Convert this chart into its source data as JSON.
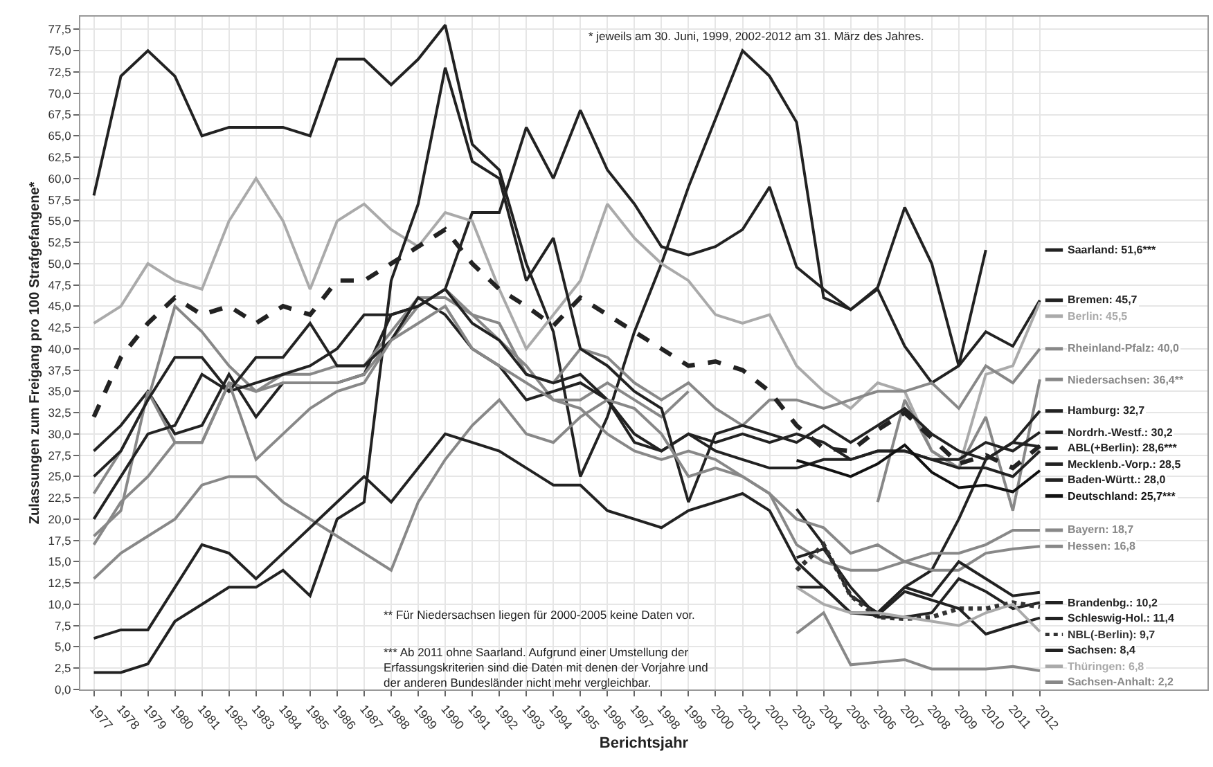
{
  "chart_data": {
    "type": "line",
    "xlabel": "Berichtsjahr",
    "ylabel": "Zulassungen zum Freigang pro 100 Strafgefangene*",
    "categories": [
      "1977",
      "1978",
      "1979",
      "1980",
      "1981",
      "1982",
      "1983",
      "1984",
      "1985",
      "1986",
      "1987",
      "1988",
      "1989",
      "1990",
      "1991",
      "1992",
      "1993",
      "1994",
      "1995",
      "1996",
      "1997",
      "1998",
      "1999",
      "2000",
      "2001",
      "2002",
      "2003",
      "2004",
      "2005",
      "2006",
      "2007",
      "2008",
      "2009",
      "2010",
      "2011",
      "2012"
    ],
    "ylim": [
      0,
      79
    ],
    "yticks": [
      {
        "value": 0,
        "label": "0,0"
      },
      {
        "value": 2.5,
        "label": "2,5"
      },
      {
        "value": 5,
        "label": "5,0"
      },
      {
        "value": 7.5,
        "label": "7,5"
      },
      {
        "value": 10,
        "label": "10,0"
      },
      {
        "value": 12.5,
        "label": "12,5"
      },
      {
        "value": 15,
        "label": "15,0"
      },
      {
        "value": 17.5,
        "label": "17,5"
      },
      {
        "value": 20,
        "label": "20,0"
      },
      {
        "value": 22.5,
        "label": "22,5"
      },
      {
        "value": 25,
        "label": "25,0"
      },
      {
        "value": 27.5,
        "label": "27,5"
      },
      {
        "value": 30,
        "label": "30,0"
      },
      {
        "value": 32.5,
        "label": "32,5"
      },
      {
        "value": 35,
        "label": "35,0"
      },
      {
        "value": 37.5,
        "label": "37,5"
      },
      {
        "value": 40,
        "label": "40,0"
      },
      {
        "value": 42.5,
        "label": "42,5"
      },
      {
        "value": 45,
        "label": "45,0"
      },
      {
        "value": 47.5,
        "label": "47,5"
      },
      {
        "value": 50,
        "label": "50,0"
      },
      {
        "value": 52.5,
        "label": "52,5"
      },
      {
        "value": 55,
        "label": "55,0"
      },
      {
        "value": 57.5,
        "label": "57,5"
      },
      {
        "value": 60,
        "label": "60,0"
      },
      {
        "value": 62.5,
        "label": "62,5"
      },
      {
        "value": 65,
        "label": "65,0"
      },
      {
        "value": 67.5,
        "label": "67,5"
      },
      {
        "value": 70,
        "label": "70,0"
      },
      {
        "value": 72.5,
        "label": "72,5"
      },
      {
        "value": 75,
        "label": "75,0"
      },
      {
        "value": 77.5,
        "label": "77,5"
      }
    ],
    "grid": true,
    "legend": "right",
    "marker": "none",
    "line_style": "solid",
    "series": [
      {
        "name": "Saarland: 51,6***",
        "color": "#222222",
        "values": [
          58,
          72,
          75,
          72,
          65,
          66,
          66,
          66,
          65,
          74,
          74,
          71,
          74,
          78,
          64,
          61,
          50,
          42,
          25,
          32,
          42,
          50,
          59,
          67,
          75,
          72,
          66.6,
          46,
          44.6,
          47.2,
          56.6,
          50,
          38,
          51.6,
          null,
          null
        ]
      },
      {
        "name": "Bremen: 45,7",
        "color": "#222222",
        "values": [
          28,
          31,
          35,
          30,
          31,
          37,
          32,
          36,
          36,
          36,
          37,
          44,
          45,
          47,
          56,
          56,
          66,
          60,
          68,
          61,
          57,
          52,
          51,
          52,
          54,
          59,
          49.6,
          47,
          44.6,
          47,
          40.3,
          36,
          38,
          42,
          40.3,
          45.7
        ]
      },
      {
        "name": "Berlin: 45,5",
        "color": "#aaaaaa",
        "values": [
          43,
          45,
          50,
          48,
          47,
          55,
          60,
          55,
          47,
          55,
          57,
          54,
          52,
          56,
          55,
          47,
          40,
          44,
          48,
          57,
          53,
          50,
          48,
          44,
          43,
          44,
          38,
          35,
          33,
          36,
          35,
          28,
          26,
          37,
          38,
          45.5
        ]
      },
      {
        "name": "Rheinland-Pfalz: 40,0",
        "color": "#888888",
        "values": [
          18,
          21,
          35,
          29,
          29,
          36,
          35,
          36,
          36,
          36,
          37,
          41,
          45,
          47,
          44,
          43,
          37,
          36,
          40,
          39,
          36,
          34,
          36,
          33,
          31,
          34,
          34,
          33,
          34,
          35,
          35,
          36,
          33,
          38,
          36,
          40
        ]
      },
      {
        "name": "Niedersachsen: 36,4**",
        "color": "#888888",
        "values": [
          23,
          28,
          34,
          45,
          42,
          38,
          35,
          37,
          37,
          38,
          38,
          42,
          46,
          46,
          44,
          41,
          38,
          34,
          34,
          36,
          34,
          32,
          35,
          null,
          null,
          null,
          null,
          null,
          null,
          22,
          34,
          28,
          26,
          32,
          21,
          36.4
        ]
      },
      {
        "name": "Hamburg: 32,7",
        "color": "#222222",
        "values": [
          2,
          2,
          3,
          8,
          10,
          12,
          12,
          14,
          11,
          20,
          22,
          48,
          57,
          73,
          62,
          60,
          48,
          53,
          40,
          38,
          35,
          33,
          22,
          30,
          31,
          30,
          29,
          31,
          29,
          31,
          33,
          30,
          28,
          27,
          29,
          32.7
        ]
      },
      {
        "name": "Nordrh.-Westf.: 30,2",
        "color": "#222222",
        "values": [
          25,
          28,
          34,
          39,
          39,
          35,
          39,
          39,
          43,
          38,
          38,
          41,
          46,
          44,
          40,
          38,
          34,
          35,
          36,
          34,
          29,
          28,
          30,
          29,
          30,
          29,
          30,
          29,
          27,
          28,
          28,
          27,
          27,
          29,
          28,
          30.2
        ]
      },
      {
        "name": "ABL(+Berlin): 28,6***",
        "color": "#222222",
        "line_style": "dashed",
        "values": [
          32,
          39,
          43,
          46,
          44,
          45,
          43,
          45,
          44,
          48,
          48,
          50,
          52,
          54,
          50,
          47,
          45,
          42.7,
          46,
          44,
          42,
          40,
          38,
          38.5,
          37.5,
          35,
          31,
          28.3,
          28,
          30.5,
          32.5,
          29.5,
          26.5,
          27.5,
          26,
          28.6
        ]
      },
      {
        "name": "Mecklenb.-Vorp.: 28,5",
        "color": "#222222",
        "values": [
          null,
          null,
          null,
          null,
          null,
          null,
          null,
          null,
          null,
          null,
          null,
          null,
          null,
          null,
          null,
          null,
          null,
          null,
          null,
          null,
          null,
          null,
          null,
          null,
          null,
          null,
          21.2,
          17,
          11,
          9,
          12,
          14,
          20,
          27,
          29,
          28.5
        ]
      },
      {
        "name": "Baden-Württ.: 28,0",
        "color": "#222222",
        "values": [
          20,
          25,
          30,
          31,
          37,
          35,
          36,
          37,
          38,
          40,
          44,
          44,
          45,
          47,
          43,
          41,
          37,
          36,
          37,
          34,
          30,
          28,
          30,
          28,
          27,
          26,
          26,
          27,
          27,
          28,
          28,
          27,
          26,
          26,
          25,
          28
        ]
      },
      {
        "name": "Deutschland: 25,7***",
        "color": "#111111",
        "values": [
          null,
          null,
          null,
          null,
          null,
          null,
          null,
          null,
          null,
          null,
          null,
          null,
          null,
          null,
          null,
          null,
          null,
          null,
          null,
          null,
          null,
          null,
          null,
          null,
          null,
          null,
          26.9,
          26,
          25,
          26.5,
          28.7,
          25.5,
          23.7,
          24,
          23.2,
          25.7
        ]
      },
      {
        "name": "Bayern: 18,7",
        "color": "#888888",
        "values": [
          13,
          16,
          18,
          20,
          24,
          25,
          25,
          22,
          20,
          18,
          16,
          14,
          22,
          27,
          31,
          34,
          30,
          29,
          32,
          34,
          33,
          30,
          25,
          26,
          25,
          23,
          17,
          15,
          14,
          14,
          15,
          16,
          16,
          17,
          18.7,
          18.7
        ]
      },
      {
        "name": "Hessen: 16,8",
        "color": "#888888",
        "values": [
          17,
          22,
          25,
          29,
          29,
          36,
          27,
          30,
          33,
          35,
          36,
          41,
          43,
          45,
          40,
          38,
          36,
          34,
          33,
          30,
          28,
          27,
          28,
          27,
          25,
          23,
          20,
          19,
          16,
          17,
          15,
          14,
          14,
          16,
          16.5,
          16.8
        ]
      },
      {
        "name": "Brandenbg.: 10,2",
        "color": "#222222",
        "values": [
          null,
          null,
          null,
          null,
          null,
          null,
          null,
          null,
          null,
          null,
          null,
          null,
          null,
          null,
          null,
          null,
          null,
          null,
          null,
          null,
          null,
          null,
          null,
          null,
          null,
          null,
          15.5,
          16.5,
          12,
          8.5,
          8.5,
          9,
          13,
          11.5,
          9.5,
          10.2
        ]
      },
      {
        "name": "Schleswig-Hol.: 11,4",
        "color": "#222222",
        "values": [
          6,
          7,
          7,
          12,
          17,
          16,
          13,
          16,
          19,
          22,
          25,
          22,
          26,
          30,
          29,
          28,
          26,
          24,
          24,
          21,
          20,
          19,
          21,
          22,
          23,
          21,
          15,
          12,
          9,
          9,
          12,
          11,
          15,
          13,
          11,
          11.4
        ]
      },
      {
        "name": "NBL(-Berlin): 9,7",
        "color": "#333333",
        "line_style": "dotted",
        "values": [
          null,
          null,
          null,
          null,
          null,
          null,
          null,
          null,
          null,
          null,
          null,
          null,
          null,
          null,
          null,
          null,
          null,
          null,
          null,
          null,
          null,
          null,
          null,
          null,
          null,
          null,
          14,
          17,
          11,
          8.5,
          8.3,
          8.5,
          9.5,
          9.5,
          10.2,
          9.7
        ]
      },
      {
        "name": "Sachsen: 8,4",
        "color": "#222222",
        "values": [
          null,
          null,
          null,
          null,
          null,
          null,
          null,
          null,
          null,
          null,
          null,
          null,
          null,
          null,
          null,
          null,
          null,
          null,
          null,
          null,
          null,
          null,
          null,
          null,
          null,
          null,
          12,
          12,
          9,
          8.7,
          11.5,
          10.5,
          9.5,
          6.5,
          7.5,
          8.4
        ]
      },
      {
        "name": "Thüringen: 6,8",
        "color": "#aaaaaa",
        "values": [
          null,
          null,
          null,
          null,
          null,
          null,
          null,
          null,
          null,
          null,
          null,
          null,
          null,
          null,
          null,
          null,
          null,
          null,
          null,
          null,
          null,
          null,
          null,
          null,
          null,
          null,
          12,
          10,
          9,
          9,
          8.5,
          8,
          7.5,
          9,
          10,
          6.8
        ]
      },
      {
        "name": "Sachsen-Anhalt: 2,2",
        "color": "#888888",
        "values": [
          null,
          null,
          null,
          null,
          null,
          null,
          null,
          null,
          null,
          null,
          null,
          null,
          null,
          null,
          null,
          null,
          null,
          null,
          null,
          null,
          null,
          null,
          null,
          null,
          null,
          null,
          6.6,
          9,
          2.9,
          3.2,
          3.5,
          2.4,
          2.4,
          2.4,
          2.7,
          2.2
        ]
      }
    ],
    "annotations": [
      "* jeweils am 30. Juni, 1999, 2002-2012 am 31. März des Jahres.",
      "** Für Niedersachsen liegen für 2000-2005 keine Daten vor.",
      "*** Ab 2011 ohne Saarland. Aufgrund einer Umstellung der Erfassungskriterien sind die Daten mit denen der Vorjahre und der anderen Bundesländer nicht mehr vergleichbar."
    ]
  }
}
